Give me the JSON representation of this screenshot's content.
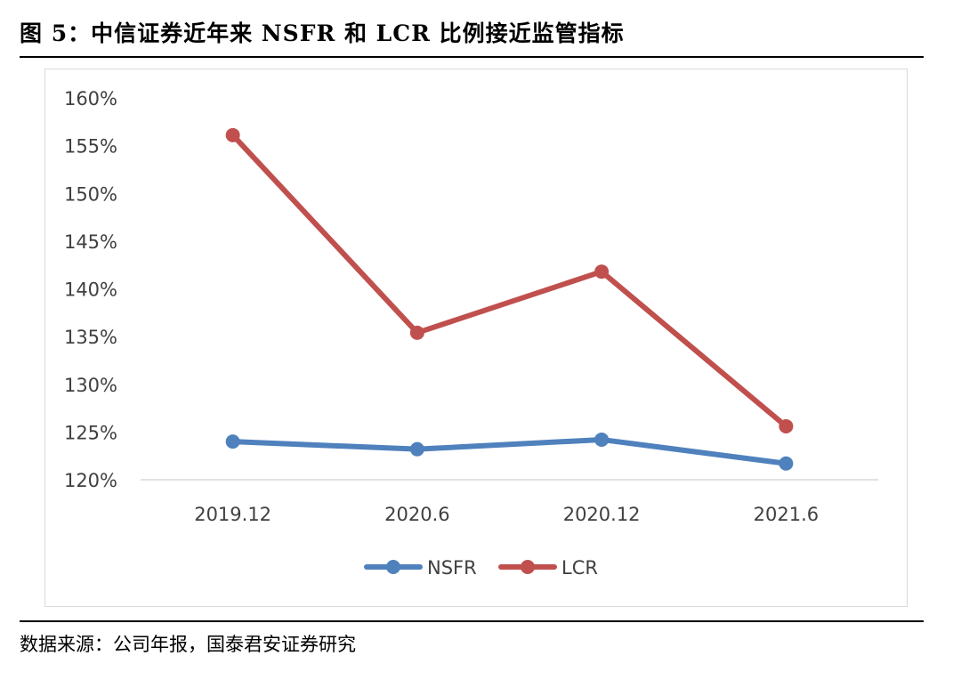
{
  "figure": {
    "title": "图 5：中信证券近年来 NSFR 和 LCR 比例接近监管指标",
    "source": "数据来源：公司年报，国泰君安证券研究"
  },
  "chart_data": {
    "type": "line",
    "categories": [
      "2019.12",
      "2020.6",
      "2020.12",
      "2021.6"
    ],
    "series": [
      {
        "name": "NSFR",
        "color": "#4f81bd",
        "values": [
          124.0,
          123.2,
          124.2,
          121.7
        ]
      },
      {
        "name": "LCR",
        "color": "#c0504d",
        "values": [
          156.1,
          135.4,
          141.8,
          125.6
        ]
      }
    ],
    "ylim": [
      120,
      160
    ],
    "yticks": [
      120,
      125,
      130,
      135,
      140,
      145,
      150,
      155,
      160
    ],
    "ytick_labels": [
      "120%",
      "125%",
      "130%",
      "135%",
      "140%",
      "145%",
      "150%",
      "155%",
      "160%"
    ],
    "grid": false,
    "legend": "bottom-center",
    "xlabel": "",
    "ylabel": ""
  }
}
